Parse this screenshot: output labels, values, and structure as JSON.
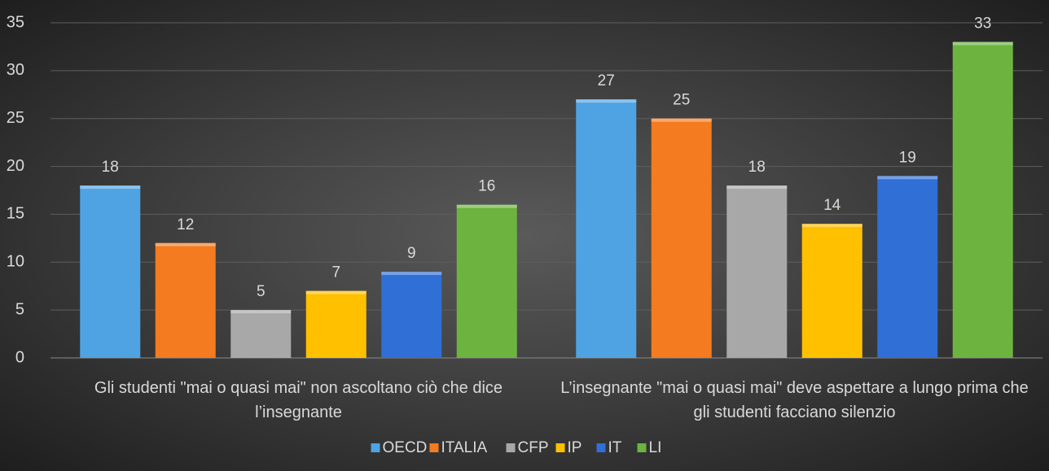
{
  "chart_data": {
    "type": "bar",
    "categories": [
      "Gli studenti \"mai o quasi mai\" non ascoltano ciò che dice l’insegnante",
      "L’insegnante \"mai o quasi mai\" deve aspettare a lungo prima che gli studenti facciano silenzio"
    ],
    "series": [
      {
        "name": "OECD",
        "color": "#4fa3e2",
        "values": [
          18,
          27
        ]
      },
      {
        "name": "ITALIA",
        "color": "#f47b20",
        "values": [
          12,
          25
        ]
      },
      {
        "name": "CFP",
        "color": "#a8a8a8",
        "values": [
          5,
          18
        ]
      },
      {
        "name": "IP",
        "color": "#ffc000",
        "values": [
          7,
          14
        ]
      },
      {
        "name": "IT",
        "color": "#2f6fd6",
        "values": [
          9,
          19
        ]
      },
      {
        "name": "LI",
        "color": "#6cb43f",
        "values": [
          16,
          33
        ]
      }
    ],
    "ylim": [
      0,
      35
    ],
    "yticks": [
      0,
      5,
      10,
      15,
      20,
      25,
      30,
      35
    ],
    "grid": true,
    "legend": "bottom"
  }
}
